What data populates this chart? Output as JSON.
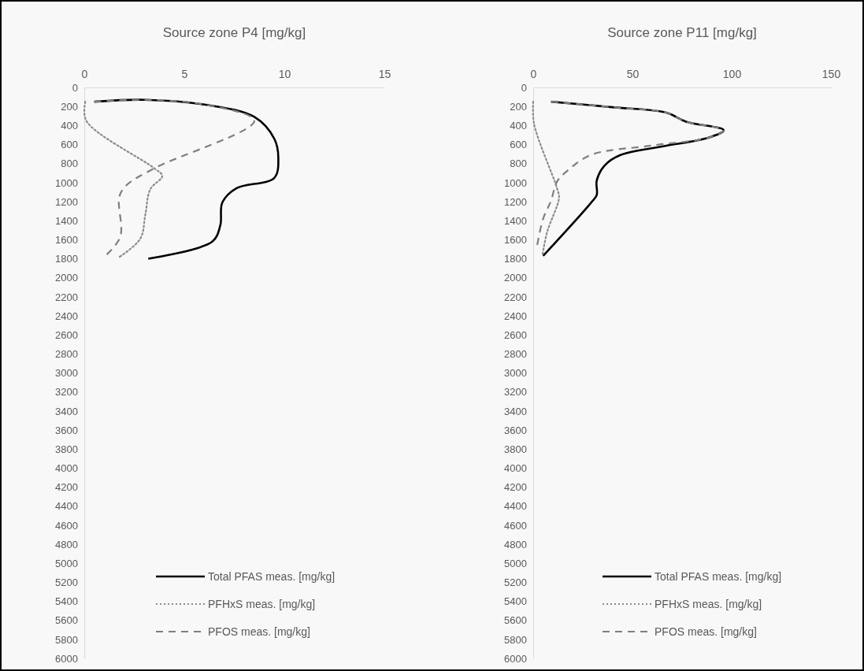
{
  "chart_data": [
    {
      "type": "line",
      "title": "Source zone P4 [mg/kg]",
      "xlim": [
        0,
        15
      ],
      "xticks": [
        0,
        5,
        10,
        15
      ],
      "ylim": [
        6000,
        0
      ],
      "yticks": [
        0,
        200,
        400,
        600,
        800,
        1000,
        1200,
        1400,
        1600,
        1800,
        2000,
        2200,
        2400,
        2600,
        2800,
        3000,
        3200,
        3400,
        3600,
        3800,
        4000,
        4200,
        4400,
        4600,
        4800,
        5000,
        5200,
        5400,
        5600,
        5800,
        6000
      ],
      "grid": false,
      "legend": "bottom right",
      "marker": "none",
      "series": [
        {
          "name": "Total PFAS meas. [mg/kg]",
          "color": "#000000",
          "line_style": "solid",
          "x": [
            0.5,
            3,
            6,
            8.5,
            9.5,
            9.7,
            9.5,
            7.6,
            6.9,
            6.8,
            6.4,
            3.2
          ],
          "values": [
            150,
            130,
            180,
            310,
            540,
            740,
            950,
            1060,
            1210,
            1450,
            1620,
            1800
          ]
        },
        {
          "name": "PFHxS meas. [mg/kg]",
          "color": "#8c8c8c",
          "line_style": "dotted",
          "x": [
            0.05,
            0.1,
            3.5,
            3.9,
            3.3,
            3.05,
            2.8,
            1.7
          ],
          "values": [
            150,
            350,
            850,
            930,
            1070,
            1340,
            1590,
            1790
          ]
        },
        {
          "name": "PFOS meas. [mg/kg]",
          "color": "#7f7f7f",
          "line_style": "dashed",
          "x": [
            0.5,
            3,
            6,
            8.5,
            3.5,
            2.1,
            1.75,
            1.8,
            1.0
          ],
          "values": [
            150,
            130,
            180,
            350,
            850,
            1030,
            1150,
            1570,
            1780
          ]
        }
      ]
    },
    {
      "type": "line",
      "title": "Source zone P11 [mg/kg]",
      "xlim": [
        0,
        150
      ],
      "xticks": [
        0,
        50,
        100,
        150
      ],
      "ylim": [
        6000,
        0
      ],
      "yticks": [
        0,
        200,
        400,
        600,
        800,
        1000,
        1200,
        1400,
        1600,
        1800,
        2000,
        2200,
        2400,
        2600,
        2800,
        3000,
        3200,
        3400,
        3600,
        3800,
        4000,
        4200,
        4400,
        4600,
        4800,
        5000,
        5200,
        5400,
        5600,
        5800,
        6000
      ],
      "grid": false,
      "legend": "bottom right",
      "marker": "none",
      "series": [
        {
          "name": "Total PFAS meas. [mg/kg]",
          "color": "#000000",
          "line_style": "solid",
          "x": [
            9,
            41,
            67,
            77,
            96,
            88,
            65,
            44,
            36,
            32,
            32,
            29,
            5
          ],
          "values": [
            150,
            210,
            265,
            360,
            450,
            530,
            620,
            710,
            820,
            980,
            1130,
            1215,
            1770
          ]
        },
        {
          "name": "PFHxS meas. [mg/kg]",
          "color": "#8c8c8c",
          "line_style": "dotted",
          "x": [
            0,
            0.4,
            12,
            13,
            7,
            4.6
          ],
          "values": [
            150,
            380,
            1060,
            1160,
            1520,
            1770
          ]
        },
        {
          "name": "PFOS meas. [mg/kg]",
          "color": "#7f7f7f",
          "line_style": "dashed",
          "x": [
            9,
            41,
            67,
            77,
            96,
            88,
            60,
            29,
            17,
            12,
            9,
            5,
            2
          ],
          "values": [
            150,
            210,
            265,
            360,
            450,
            530,
            610,
            710,
            880,
            990,
            1190,
            1380,
            1660
          ]
        }
      ]
    }
  ]
}
